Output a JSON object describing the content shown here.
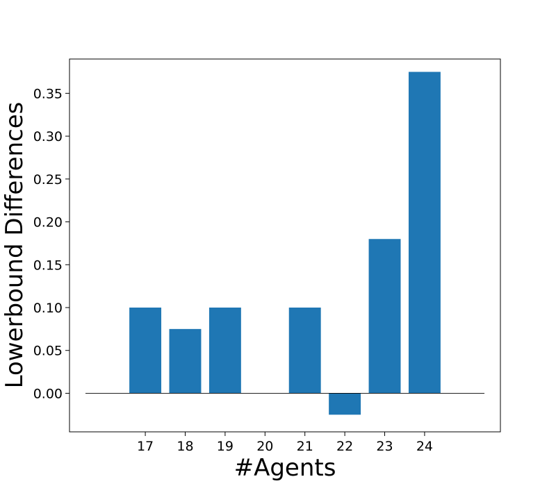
{
  "chart_data": {
    "type": "bar",
    "title": "",
    "xlabel": "#Agents",
    "ylabel": "Lowerbound Differences",
    "categories": [
      "17",
      "18",
      "19",
      "20",
      "21",
      "22",
      "23",
      "24"
    ],
    "values": [
      0.1,
      0.075,
      0.1,
      0.0,
      0.1,
      -0.025,
      0.18,
      0.375
    ],
    "ylim": [
      -0.045,
      0.39
    ],
    "yticks": [
      "0.00",
      "0.05",
      "0.10",
      "0.15",
      "0.20",
      "0.25",
      "0.30",
      "0.35"
    ],
    "bar_color": "#1f77b4",
    "grid": false,
    "zero_line": true
  }
}
